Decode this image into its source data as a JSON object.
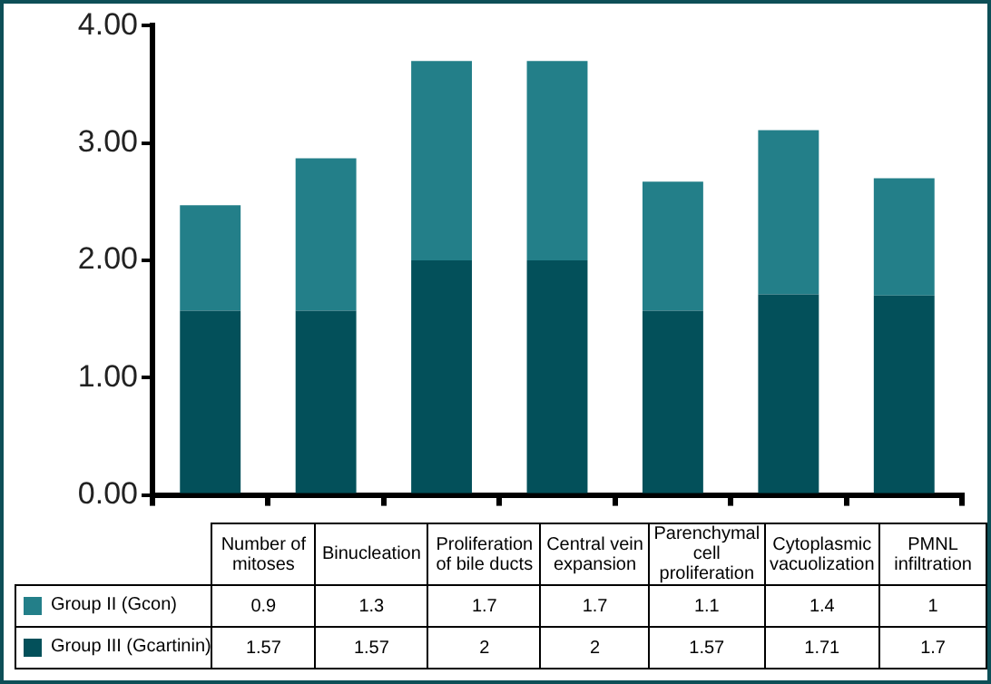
{
  "chart_data": {
    "type": "bar",
    "stacked": true,
    "categories": [
      "Number of mitoses",
      "Binucleation",
      "Proliferation of bile ducts",
      "Central vein expansion",
      "Parenchymal cell proliferation",
      "Cytoplasmic vacuolization",
      "PMNL infiltration"
    ],
    "series": [
      {
        "name": "Group III (Gcartinin)",
        "color": "#03505a",
        "values": [
          1.57,
          1.57,
          2,
          2,
          1.57,
          1.71,
          1.7
        ]
      },
      {
        "name": "Group II (Gcon)",
        "color": "#237f89",
        "values": [
          0.9,
          1.3,
          1.7,
          1.7,
          1.1,
          1.4,
          1
        ]
      }
    ],
    "ylim": [
      0,
      4
    ],
    "yticks": [
      {
        "value": 0,
        "label": "0.00"
      },
      {
        "value": 1,
        "label": "1.00"
      },
      {
        "value": 2,
        "label": "2.00"
      },
      {
        "value": 3,
        "label": "3.00"
      },
      {
        "value": 4,
        "label": "4.00"
      }
    ],
    "grid": false,
    "legend": "bottom",
    "data_labels": true
  }
}
